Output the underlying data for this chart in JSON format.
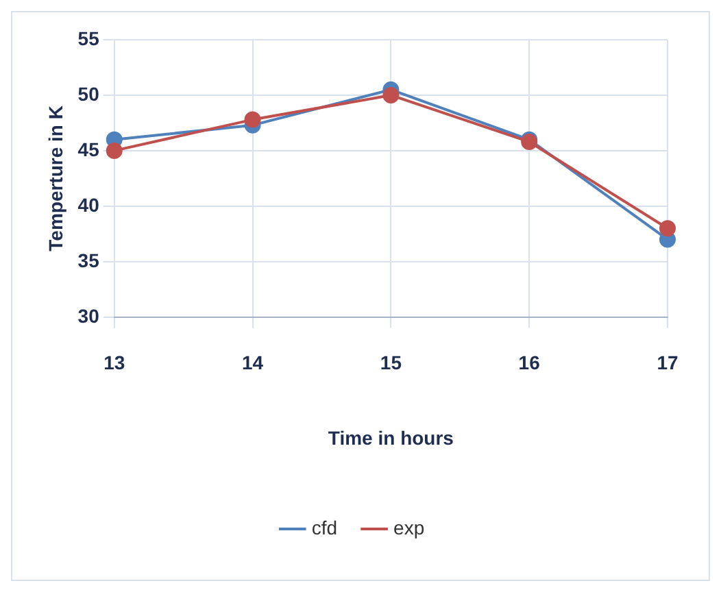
{
  "chart_data": {
    "type": "line",
    "xlabel": "Time in hours",
    "ylabel": "Temperture in K",
    "categories": [
      "13",
      "14",
      "15",
      "16",
      "17"
    ],
    "series": [
      {
        "name": "cfd",
        "color": "#4f81bd",
        "values": [
          46,
          47.3,
          50.5,
          46,
          37
        ]
      },
      {
        "name": "exp",
        "color": "#c0504d",
        "values": [
          45,
          47.8,
          50,
          45.8,
          38
        ]
      }
    ],
    "ylim": [
      30,
      55
    ],
    "yticks": [
      30,
      35,
      40,
      45,
      50,
      55
    ],
    "grid": true,
    "legend": "bottom",
    "marker": "circle",
    "line_style": "solid"
  }
}
